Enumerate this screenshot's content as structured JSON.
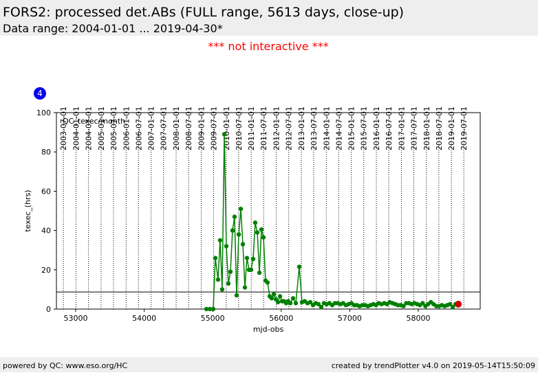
{
  "chart_data": {
    "type": "line",
    "title": "FORS2: processed det.ABs (FULL range, 5613 days, close-up)",
    "subtitle": "Data range: 2004-01-01 ... 2019-04-30*",
    "notice": "*** not interactive ***",
    "badge": "4",
    "panel_label": "QC_texec/month",
    "x_label": "mjd-obs",
    "y_label": "texec_(hrs)",
    "footer_left": "powered by QC: www.eso.org/HC",
    "footer_right": "created by trendPlotter v4.0 on 2019-05-14T15:50:09",
    "color": "#008000",
    "last_point_color": "#cc0000",
    "reference_line": 8.7,
    "xlim": [
      52719,
      58904
    ],
    "ylim": [
      0,
      100
    ],
    "xticks": [
      53000,
      54000,
      55000,
      56000,
      57000,
      58000
    ],
    "yticks": [
      0,
      20,
      40,
      60,
      80,
      100
    ],
    "date_ticks": [
      {
        "value": 52821,
        "label": "2003-07-01"
      },
      {
        "value": 53005,
        "label": "2004-01-01"
      },
      {
        "value": 53187,
        "label": "2004-07-01"
      },
      {
        "value": 53371,
        "label": "2005-01-01"
      },
      {
        "value": 53552,
        "label": "2005-07-01"
      },
      {
        "value": 53736,
        "label": "2006-01-01"
      },
      {
        "value": 53917,
        "label": "2006-07-01"
      },
      {
        "value": 54101,
        "label": "2007-01-01"
      },
      {
        "value": 54282,
        "label": "2007-07-01"
      },
      {
        "value": 54466,
        "label": "2008-01-01"
      },
      {
        "value": 54648,
        "label": "2008-07-01"
      },
      {
        "value": 54832,
        "label": "2009-01-01"
      },
      {
        "value": 55013,
        "label": "2009-07-01"
      },
      {
        "value": 55197,
        "label": "2010-01-01"
      },
      {
        "value": 55378,
        "label": "2010-07-01"
      },
      {
        "value": 55562,
        "label": "2011-01-01"
      },
      {
        "value": 55743,
        "label": "2011-07-01"
      },
      {
        "value": 55927,
        "label": "2012-01-01"
      },
      {
        "value": 56109,
        "label": "2012-07-01"
      },
      {
        "value": 56293,
        "label": "2013-01-01"
      },
      {
        "value": 56474,
        "label": "2013-07-01"
      },
      {
        "value": 56658,
        "label": "2014-01-01"
      },
      {
        "value": 56839,
        "label": "2014-07-01"
      },
      {
        "value": 57023,
        "label": "2015-01-01"
      },
      {
        "value": 57204,
        "label": "2015-07-01"
      },
      {
        "value": 57388,
        "label": "2016-01-01"
      },
      {
        "value": 57570,
        "label": "2016-07-01"
      },
      {
        "value": 57754,
        "label": "2017-01-01"
      },
      {
        "value": 57935,
        "label": "2017-07-01"
      },
      {
        "value": 58119,
        "label": "2018-01-01"
      },
      {
        "value": 58300,
        "label": "2018-07-01"
      },
      {
        "value": 58484,
        "label": "2019-01-01"
      },
      {
        "value": 58665,
        "label": "2019-07-01"
      }
    ],
    "x": [
      54908,
      54958,
      55008,
      55038,
      55078,
      55108,
      55138,
      55169,
      55199,
      55229,
      55259,
      55289,
      55319,
      55349,
      55380,
      55410,
      55440,
      55470,
      55500,
      55530,
      55560,
      55590,
      55620,
      55651,
      55681,
      55711,
      55741,
      55771,
      55801,
      55831,
      55861,
      55892,
      55922,
      55952,
      55982,
      56012,
      56042,
      56072,
      56102,
      56133,
      56173,
      56213,
      56263,
      56303,
      56343,
      56383,
      56424,
      56464,
      56504,
      56544,
      56584,
      56624,
      56664,
      56704,
      56744,
      56784,
      56824,
      56864,
      56904,
      56944,
      56984,
      57024,
      57064,
      57104,
      57144,
      57184,
      57224,
      57264,
      57304,
      57344,
      57384,
      57424,
      57464,
      57504,
      57544,
      57584,
      57624,
      57664,
      57704,
      57744,
      57784,
      57824,
      57864,
      57904,
      57944,
      57984,
      58024,
      58064,
      58104,
      58144,
      58184,
      58224,
      58264,
      58304,
      58344,
      58384,
      58424,
      58464,
      58504,
      58544,
      58584
    ],
    "values": [
      0,
      0,
      0,
      26,
      15,
      35,
      10,
      89,
      32,
      13,
      19,
      40,
      47,
      7,
      38,
      51,
      33,
      11,
      26,
      20,
      20,
      25.5,
      44,
      39,
      18.5,
      40.5,
      36.5,
      14.5,
      13.5,
      6.5,
      5.5,
      7.5,
      5,
      3.5,
      6.5,
      4,
      4,
      3,
      4,
      3,
      5.5,
      3,
      21.5,
      3.5,
      4,
      3,
      3.5,
      2,
      3,
      2.5,
      1,
      3,
      2.5,
      3,
      2,
      3,
      3,
      2.5,
      3,
      2,
      2.5,
      3,
      2,
      2,
      1.5,
      2,
      2,
      1.5,
      2,
      2.5,
      2,
      3,
      2.5,
      3,
      2.5,
      3.5,
      3,
      2.5,
      2,
      2,
      1.5,
      3,
      3,
      2.5,
      3,
      2.5,
      2,
      3,
      1.5,
      2.5,
      3.5,
      2.5,
      1.5,
      1.5,
      2,
      1.5,
      2,
      2.5,
      1,
      2.5,
      2.5
    ]
  }
}
